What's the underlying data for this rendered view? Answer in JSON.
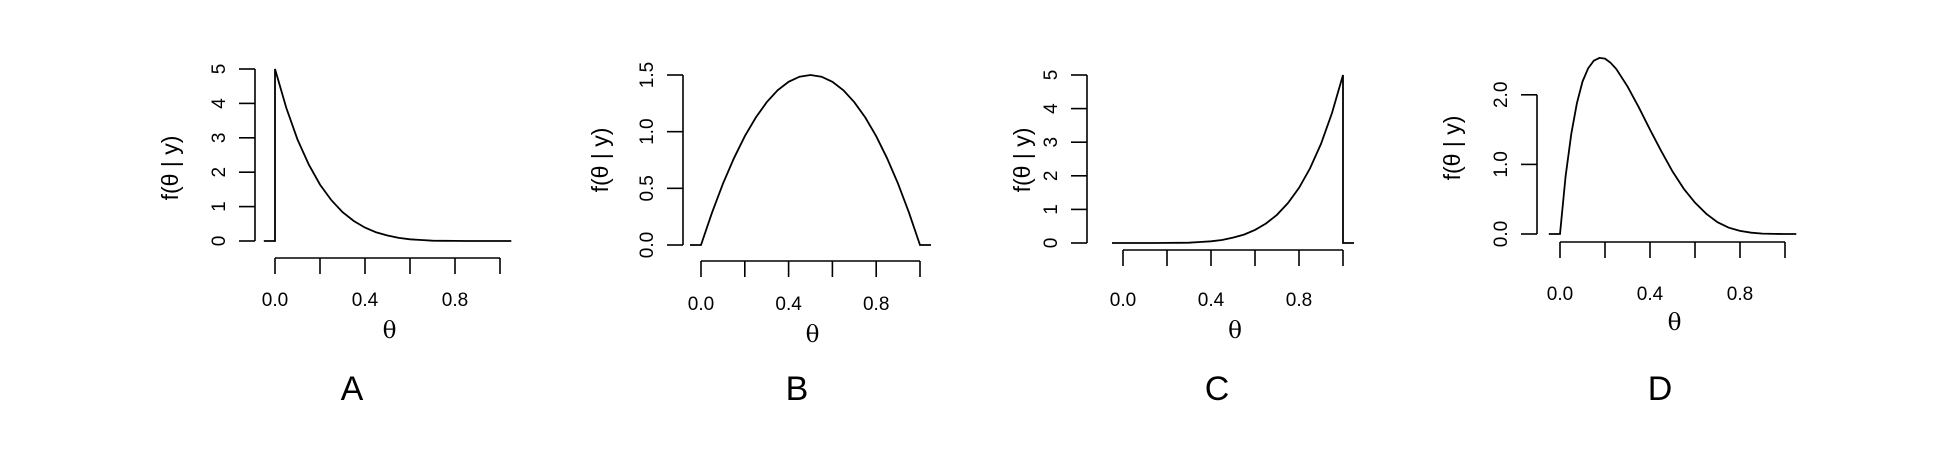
{
  "chart_data": [
    {
      "type": "line",
      "panel_label": "A",
      "xlabel": "θ",
      "ylabel": "f(θ | y)",
      "xlim": [
        0,
        1
      ],
      "ylim": [
        0,
        5
      ],
      "x_ticks": [
        0,
        0.2,
        0.4,
        0.6,
        0.8,
        1.0
      ],
      "x_tick_labels": [
        "0.0",
        "",
        "0.4",
        "",
        "0.8",
        ""
      ],
      "y_ticks": [
        0,
        1,
        2,
        3,
        4,
        5
      ],
      "y_tick_labels": [
        "0",
        "1",
        "2",
        "3",
        "4",
        "5"
      ],
      "x": [
        -0.05,
        0,
        0,
        0.05,
        0.1,
        0.15,
        0.2,
        0.25,
        0.3,
        0.35,
        0.4,
        0.45,
        0.5,
        0.55,
        0.6,
        0.65,
        0.7,
        0.75,
        0.8,
        0.85,
        0.9,
        0.95,
        1.0,
        1.05
      ],
      "y": [
        0,
        0,
        5.0,
        3.87,
        2.95,
        2.22,
        1.64,
        1.19,
        0.84,
        0.58,
        0.39,
        0.25,
        0.16,
        0.09,
        0.05,
        0.03,
        0.01,
        0.005,
        0.002,
        0.0004,
        0.0001,
        0,
        0,
        0
      ],
      "grid": false,
      "legend": "none"
    },
    {
      "type": "line",
      "panel_label": "B",
      "xlabel": "θ",
      "ylabel": "f(θ | y)",
      "xlim": [
        0,
        1
      ],
      "ylim": [
        0,
        1.5
      ],
      "x_ticks": [
        0,
        0.2,
        0.4,
        0.6,
        0.8,
        1.0
      ],
      "x_tick_labels": [
        "0.0",
        "",
        "0.4",
        "",
        "0.8",
        ""
      ],
      "y_ticks": [
        0,
        0.5,
        1.0,
        1.5
      ],
      "y_tick_labels": [
        "0.0",
        "0.5",
        "1.0",
        "1.5"
      ],
      "x": [
        -0.05,
        0,
        0.05,
        0.1,
        0.15,
        0.2,
        0.25,
        0.3,
        0.35,
        0.4,
        0.45,
        0.5,
        0.55,
        0.6,
        0.65,
        0.7,
        0.75,
        0.8,
        0.85,
        0.9,
        0.95,
        1.0,
        1.05
      ],
      "y": [
        0,
        0,
        0.285,
        0.54,
        0.765,
        0.96,
        1.125,
        1.26,
        1.365,
        1.44,
        1.485,
        1.5,
        1.485,
        1.44,
        1.365,
        1.26,
        1.125,
        0.96,
        0.765,
        0.54,
        0.285,
        0,
        0
      ],
      "grid": false,
      "legend": "none"
    },
    {
      "type": "line",
      "panel_label": "C",
      "xlabel": "θ",
      "ylabel": "f(θ | y)",
      "xlim": [
        0,
        1
      ],
      "ylim": [
        0,
        5
      ],
      "x_ticks": [
        0,
        0.2,
        0.4,
        0.6,
        0.8,
        1.0
      ],
      "x_tick_labels": [
        "0.0",
        "",
        "0.4",
        "",
        "0.8",
        ""
      ],
      "y_ticks": [
        0,
        1,
        2,
        3,
        4,
        5
      ],
      "y_tick_labels": [
        "0",
        "1",
        "2",
        "3",
        "4",
        "5"
      ],
      "x": [
        -0.05,
        0,
        0.05,
        0.1,
        0.15,
        0.2,
        0.25,
        0.3,
        0.35,
        0.4,
        0.45,
        0.5,
        0.55,
        0.6,
        0.65,
        0.7,
        0.75,
        0.8,
        0.85,
        0.9,
        0.95,
        1.0,
        1.0,
        1.05
      ],
      "y": [
        0,
        0,
        0,
        0,
        0.0004,
        0.002,
        0.005,
        0.01,
        0.03,
        0.05,
        0.09,
        0.16,
        0.25,
        0.39,
        0.58,
        0.84,
        1.19,
        1.64,
        2.22,
        2.95,
        3.87,
        5.0,
        0,
        0
      ],
      "grid": false,
      "legend": "none"
    },
    {
      "type": "line",
      "panel_label": "D",
      "xlabel": "θ",
      "ylabel": "f(θ | y)",
      "xlim": [
        0,
        1
      ],
      "ylim": [
        0,
        2.5
      ],
      "x_ticks": [
        0,
        0.2,
        0.4,
        0.6,
        0.8,
        1.0
      ],
      "x_tick_labels": [
        "0.0",
        "",
        "0.4",
        "",
        "0.8",
        ""
      ],
      "y_ticks": [
        0,
        1.0,
        2.0
      ],
      "y_tick_labels": [
        "0.0",
        "1.0",
        "2.0"
      ],
      "x": [
        -0.05,
        0,
        0.025,
        0.05,
        0.075,
        0.1,
        0.125,
        0.15,
        0.175,
        0.2,
        0.225,
        0.25,
        0.3,
        0.35,
        0.4,
        0.45,
        0.5,
        0.55,
        0.6,
        0.65,
        0.7,
        0.75,
        0.8,
        0.85,
        0.9,
        0.95,
        1.0,
        1.05
      ],
      "y": [
        0,
        0,
        0.83,
        1.44,
        1.88,
        2.19,
        2.38,
        2.49,
        2.53,
        2.52,
        2.46,
        2.37,
        2.12,
        1.82,
        1.5,
        1.19,
        0.9,
        0.65,
        0.45,
        0.29,
        0.17,
        0.09,
        0.044,
        0.018,
        0.006,
        0.001,
        0,
        0
      ],
      "grid": false,
      "legend": "none"
    }
  ]
}
